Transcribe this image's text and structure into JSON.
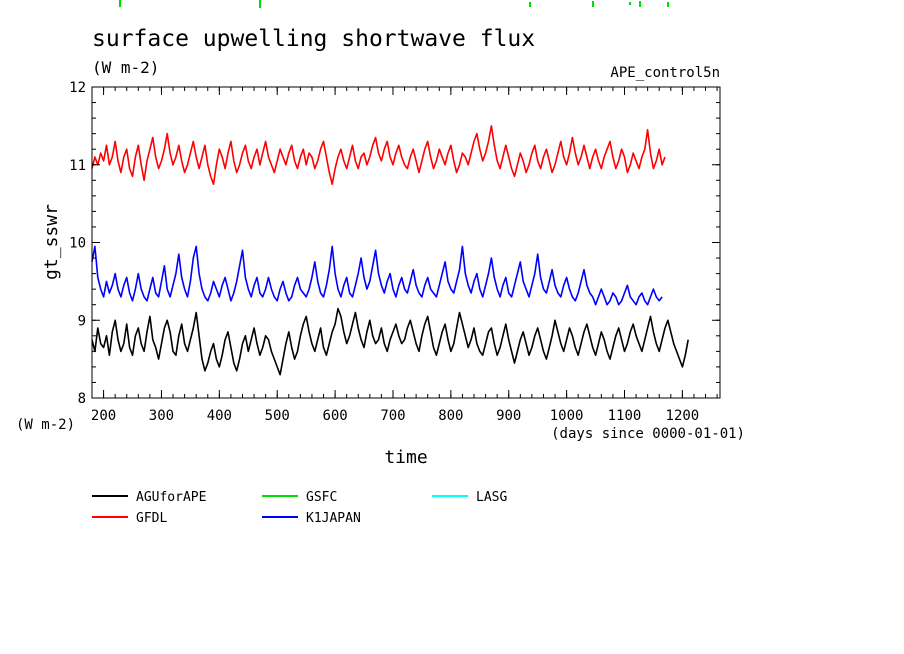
{
  "chart_data": {
    "type": "line",
    "title": "surface upwelling shortwave flux",
    "units": "(W m-2)",
    "experiment": "APE_control5n",
    "xlabel": "time",
    "xunits": "(days since 0000-01-01)",
    "ylabel": "gt_sswr",
    "yunits": "(W m-2)",
    "xlim": [
      180,
      1265
    ],
    "ylim": [
      8,
      12
    ],
    "x_ticks": [
      200,
      300,
      400,
      500,
      600,
      700,
      800,
      900,
      1000,
      1100,
      1200
    ],
    "y_ticks": [
      8,
      9,
      10,
      11,
      12
    ],
    "grid": false,
    "legend_position": "bottom",
    "x_start": 180,
    "x_step": 5,
    "series": [
      {
        "name": "AGUforAPE",
        "color": "#000000",
        "values": [
          8.75,
          8.6,
          8.9,
          8.7,
          8.65,
          8.8,
          8.55,
          8.85,
          9.0,
          8.75,
          8.6,
          8.7,
          8.95,
          8.65,
          8.55,
          8.8,
          8.9,
          8.7,
          8.6,
          8.85,
          9.05,
          8.75,
          8.65,
          8.5,
          8.7,
          8.9,
          9.0,
          8.85,
          8.6,
          8.55,
          8.8,
          8.95,
          8.7,
          8.6,
          8.75,
          8.9,
          9.1,
          8.8,
          8.5,
          8.35,
          8.45,
          8.6,
          8.7,
          8.5,
          8.4,
          8.55,
          8.75,
          8.85,
          8.65,
          8.45,
          8.35,
          8.5,
          8.7,
          8.8,
          8.6,
          8.75,
          8.9,
          8.7,
          8.55,
          8.65,
          8.8,
          8.75,
          8.6,
          8.5,
          8.4,
          8.3,
          8.5,
          8.7,
          8.85,
          8.65,
          8.5,
          8.6,
          8.8,
          8.95,
          9.05,
          8.85,
          8.7,
          8.6,
          8.75,
          8.9,
          8.65,
          8.55,
          8.7,
          8.85,
          8.95,
          9.15,
          9.05,
          8.85,
          8.7,
          8.8,
          8.95,
          9.1,
          8.9,
          8.75,
          8.65,
          8.85,
          9.0,
          8.8,
          8.7,
          8.75,
          8.9,
          8.7,
          8.6,
          8.75,
          8.85,
          8.95,
          8.8,
          8.7,
          8.75,
          8.9,
          9.0,
          8.85,
          8.7,
          8.6,
          8.8,
          8.95,
          9.05,
          8.85,
          8.65,
          8.55,
          8.7,
          8.85,
          8.95,
          8.75,
          8.6,
          8.7,
          8.9,
          9.1,
          8.95,
          8.8,
          8.65,
          8.75,
          8.9,
          8.7,
          8.6,
          8.55,
          8.7,
          8.85,
          8.9,
          8.7,
          8.55,
          8.65,
          8.8,
          8.95,
          8.75,
          8.6,
          8.45,
          8.6,
          8.75,
          8.85,
          8.7,
          8.55,
          8.65,
          8.8,
          8.9,
          8.75,
          8.6,
          8.5,
          8.65,
          8.8,
          9.0,
          8.85,
          8.7,
          8.6,
          8.75,
          8.9,
          8.8,
          8.65,
          8.55,
          8.7,
          8.85,
          8.95,
          8.8,
          8.65,
          8.55,
          8.7,
          8.85,
          8.75,
          8.6,
          8.5,
          8.65,
          8.8,
          8.9,
          8.75,
          8.6,
          8.7,
          8.85,
          8.95,
          8.8,
          8.7,
          8.6,
          8.75,
          8.9,
          9.05,
          8.85,
          8.7,
          8.6,
          8.75,
          8.9,
          9.0,
          8.85,
          8.7,
          8.6,
          8.5,
          8.4,
          8.55,
          8.75
        ]
      },
      {
        "name": "GFDL",
        "color": "#ff0000",
        "values": [
          10.95,
          11.1,
          11.0,
          11.15,
          11.05,
          11.25,
          11.0,
          11.1,
          11.3,
          11.05,
          10.9,
          11.1,
          11.2,
          10.95,
          10.85,
          11.1,
          11.25,
          11.0,
          10.8,
          11.05,
          11.2,
          11.35,
          11.1,
          10.95,
          11.05,
          11.2,
          11.4,
          11.15,
          11.0,
          11.1,
          11.25,
          11.05,
          10.9,
          11.0,
          11.15,
          11.3,
          11.1,
          10.95,
          11.1,
          11.25,
          11.0,
          10.85,
          10.75,
          11.0,
          11.2,
          11.1,
          10.95,
          11.15,
          11.3,
          11.05,
          10.9,
          11.0,
          11.15,
          11.25,
          11.05,
          10.95,
          11.1,
          11.2,
          11.0,
          11.15,
          11.3,
          11.1,
          11.0,
          10.9,
          11.05,
          11.2,
          11.1,
          11.0,
          11.15,
          11.25,
          11.05,
          10.95,
          11.1,
          11.2,
          11.0,
          11.15,
          11.1,
          10.95,
          11.05,
          11.2,
          11.3,
          11.1,
          10.9,
          10.75,
          10.95,
          11.1,
          11.2,
          11.05,
          10.95,
          11.1,
          11.25,
          11.05,
          10.95,
          11.1,
          11.15,
          11.0,
          11.1,
          11.25,
          11.35,
          11.15,
          11.05,
          11.2,
          11.3,
          11.1,
          11.0,
          11.15,
          11.25,
          11.1,
          11.0,
          10.95,
          11.1,
          11.2,
          11.05,
          10.9,
          11.05,
          11.2,
          11.3,
          11.1,
          10.95,
          11.05,
          11.2,
          11.1,
          11.0,
          11.15,
          11.25,
          11.05,
          10.9,
          11.0,
          11.15,
          11.1,
          11.0,
          11.15,
          11.3,
          11.4,
          11.2,
          11.05,
          11.15,
          11.3,
          11.5,
          11.25,
          11.05,
          10.95,
          11.1,
          11.25,
          11.1,
          10.95,
          10.85,
          11.0,
          11.15,
          11.05,
          10.9,
          11.0,
          11.15,
          11.25,
          11.05,
          10.95,
          11.1,
          11.2,
          11.05,
          10.9,
          11.0,
          11.15,
          11.3,
          11.1,
          11.0,
          11.15,
          11.35,
          11.15,
          11.0,
          11.1,
          11.25,
          11.1,
          10.95,
          11.1,
          11.2,
          11.05,
          10.95,
          11.1,
          11.2,
          11.3,
          11.1,
          10.95,
          11.05,
          11.2,
          11.1,
          10.9,
          11.0,
          11.15,
          11.05,
          10.95,
          11.1,
          11.2,
          11.45,
          11.15,
          10.95,
          11.05,
          11.2,
          11.0,
          11.1
        ]
      },
      {
        "name": "GSFC",
        "color": "#00dd00",
        "values": []
      },
      {
        "name": "K1JAPAN",
        "color": "#0000ff",
        "values": [
          9.75,
          9.95,
          9.55,
          9.4,
          9.3,
          9.5,
          9.35,
          9.45,
          9.6,
          9.4,
          9.3,
          9.45,
          9.55,
          9.35,
          9.25,
          9.4,
          9.6,
          9.4,
          9.3,
          9.25,
          9.4,
          9.55,
          9.35,
          9.3,
          9.5,
          9.7,
          9.4,
          9.3,
          9.45,
          9.6,
          9.85,
          9.55,
          9.4,
          9.3,
          9.5,
          9.8,
          9.95,
          9.6,
          9.4,
          9.3,
          9.25,
          9.35,
          9.5,
          9.4,
          9.3,
          9.45,
          9.55,
          9.4,
          9.25,
          9.35,
          9.5,
          9.7,
          9.9,
          9.55,
          9.4,
          9.3,
          9.45,
          9.55,
          9.35,
          9.3,
          9.4,
          9.55,
          9.4,
          9.3,
          9.25,
          9.4,
          9.5,
          9.35,
          9.25,
          9.3,
          9.45,
          9.55,
          9.4,
          9.35,
          9.3,
          9.4,
          9.55,
          9.75,
          9.5,
          9.35,
          9.3,
          9.45,
          9.65,
          9.95,
          9.6,
          9.4,
          9.3,
          9.45,
          9.55,
          9.35,
          9.3,
          9.45,
          9.6,
          9.8,
          9.55,
          9.4,
          9.5,
          9.7,
          9.9,
          9.6,
          9.45,
          9.35,
          9.5,
          9.6,
          9.4,
          9.3,
          9.45,
          9.55,
          9.4,
          9.35,
          9.5,
          9.65,
          9.45,
          9.35,
          9.3,
          9.45,
          9.55,
          9.4,
          9.35,
          9.3,
          9.45,
          9.6,
          9.75,
          9.5,
          9.4,
          9.35,
          9.5,
          9.65,
          9.95,
          9.6,
          9.45,
          9.35,
          9.5,
          9.6,
          9.4,
          9.3,
          9.45,
          9.6,
          9.8,
          9.55,
          9.4,
          9.3,
          9.45,
          9.55,
          9.35,
          9.3,
          9.45,
          9.6,
          9.75,
          9.5,
          9.4,
          9.3,
          9.45,
          9.6,
          9.85,
          9.55,
          9.4,
          9.35,
          9.5,
          9.65,
          9.45,
          9.35,
          9.3,
          9.45,
          9.55,
          9.4,
          9.3,
          9.25,
          9.35,
          9.5,
          9.65,
          9.45,
          9.35,
          9.3,
          9.2,
          9.3,
          9.4,
          9.3,
          9.2,
          9.25,
          9.35,
          9.3,
          9.2,
          9.25,
          9.35,
          9.45,
          9.3,
          9.25,
          9.2,
          9.3,
          9.35,
          9.25,
          9.2,
          9.3,
          9.4,
          9.3,
          9.25,
          9.3
        ]
      },
      {
        "name": "LASG",
        "color": "#00ffff",
        "values": []
      }
    ]
  }
}
